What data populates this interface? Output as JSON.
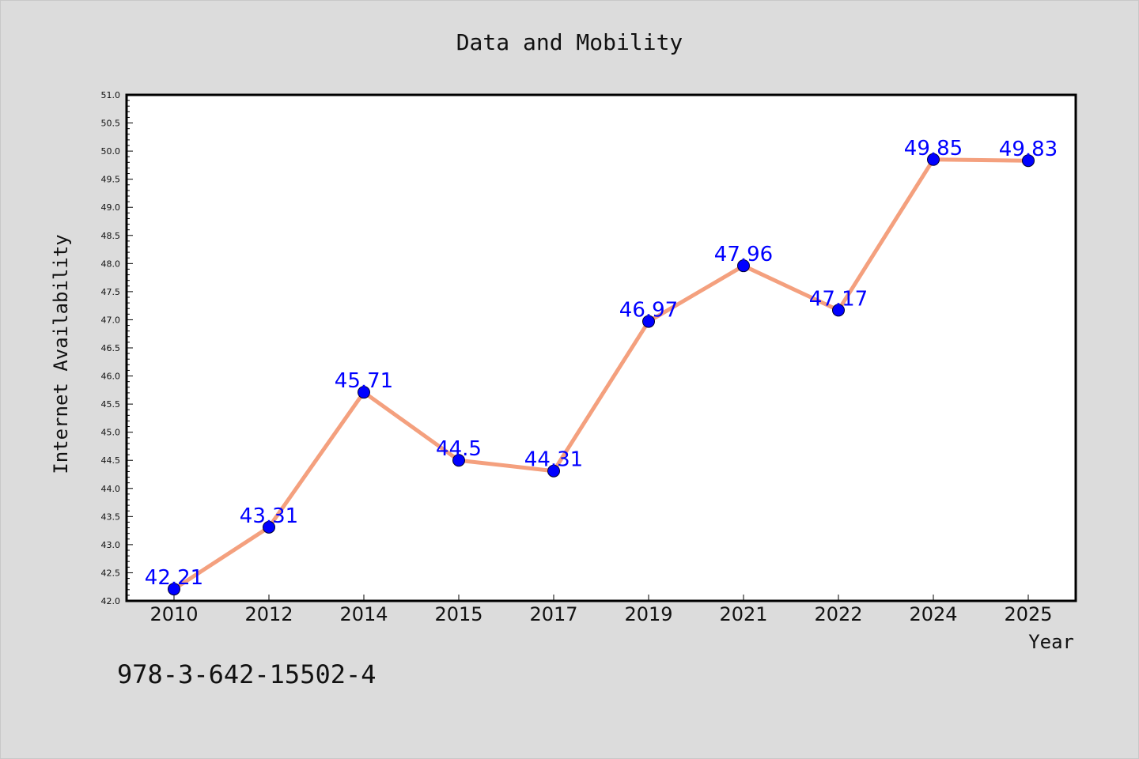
{
  "chart_data": {
    "type": "line",
    "title": "Data and Mobility",
    "xlabel": "Year",
    "ylabel": "Internet Availability",
    "categories": [
      "2010",
      "2012",
      "2014",
      "2015",
      "2017",
      "2019",
      "2021",
      "2022",
      "2024",
      "2025"
    ],
    "series": [
      {
        "values": [
          42.21,
          43.31,
          45.71,
          44.5,
          44.31,
          46.97,
          47.96,
          47.17,
          49.85,
          49.83
        ],
        "labels": [
          "42.21",
          "43.31",
          "45.71",
          "44.5",
          "44.31",
          "46.97",
          "47.96",
          "47.17",
          "49.85",
          "49.83"
        ]
      }
    ],
    "ylim": [
      42.0,
      51.0
    ],
    "yticks": [
      "42.0",
      "42.5",
      "43.0",
      "43.5",
      "44.0",
      "44.5",
      "45.0",
      "45.5",
      "46.0",
      "46.5",
      "47.0",
      "47.5",
      "48.0",
      "48.5",
      "49.0",
      "49.5",
      "50.0",
      "50.5",
      "51.0"
    ],
    "grid": false,
    "colors": {
      "line": "#f4a07e",
      "marker": "#0000ff",
      "data_label": "#0000ff",
      "background": "#dcdcdc",
      "plot_background": "#ffffff"
    }
  },
  "footer": {
    "isbn": "978-3-642-15502-4"
  }
}
